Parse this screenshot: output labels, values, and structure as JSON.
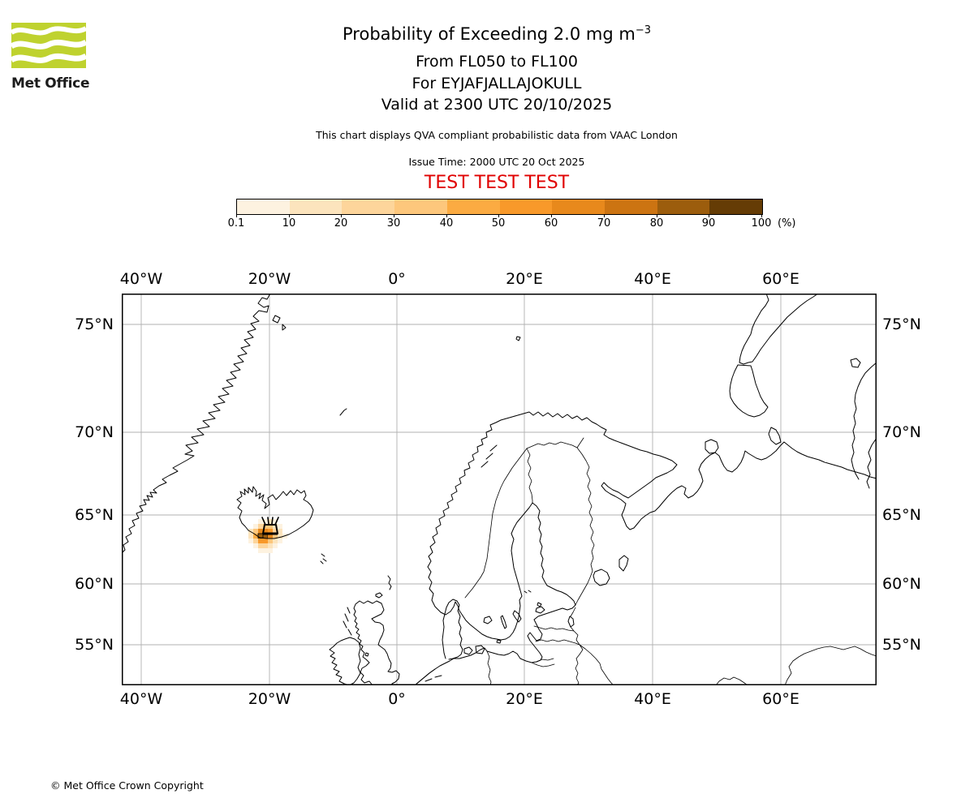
{
  "branding": {
    "logo_text": "Met Office",
    "logo_color": "#bfd22f"
  },
  "header": {
    "title_main": "Probability of Exceeding 2.0 mg m",
    "title_sup": "−3",
    "line_flight_levels": "From FL050 to FL100",
    "line_volcano": "For EYJAFJALLAJOKULL",
    "line_valid": "Valid at 2300 UTC 20/10/2025",
    "qva_note": "This chart displays QVA compliant probabilistic data from VAAC London",
    "issue_time": "Issue Time: 2000 UTC 20 Oct 2025",
    "test_banner": "TEST TEST TEST",
    "test_color": "#e00000"
  },
  "colorbar": {
    "unit_label": "(%)",
    "tick_labels": [
      "0.1",
      "10",
      "20",
      "30",
      "40",
      "50",
      "60",
      "70",
      "80",
      "90",
      "100"
    ],
    "segment_colors": [
      "#fdf2e0",
      "#fce4bd",
      "#fdd59b",
      "#fdc77c",
      "#fbab42",
      "#f8992a",
      "#e8891c",
      "#cc7412",
      "#9c5d0d",
      "#653c05"
    ]
  },
  "map": {
    "lon_labels": [
      "40°W",
      "20°W",
      "0°",
      "20°E",
      "40°E",
      "60°E"
    ],
    "lat_labels": [
      "75°N",
      "70°N",
      "65°N",
      "60°N",
      "55°N"
    ],
    "gridline_color": "#b0b0b0",
    "coastline_color": "#000000",
    "volcano_marker": "volcano-eruption-symbol"
  },
  "ash_plume": {
    "cell_size": 6,
    "cells": [
      [
        318,
        640,
        0
      ],
      [
        324,
        640,
        0
      ],
      [
        330,
        640,
        1
      ],
      [
        336,
        640,
        0
      ],
      [
        312,
        646,
        0
      ],
      [
        318,
        646,
        2
      ],
      [
        324,
        646,
        3
      ],
      [
        330,
        646,
        3
      ],
      [
        336,
        646,
        1
      ],
      [
        342,
        646,
        0
      ],
      [
        306,
        652,
        1
      ],
      [
        312,
        652,
        3
      ],
      [
        318,
        652,
        6
      ],
      [
        324,
        652,
        6
      ],
      [
        330,
        652,
        5
      ],
      [
        336,
        652,
        2
      ],
      [
        342,
        652,
        1
      ],
      [
        306,
        658,
        1
      ],
      [
        312,
        658,
        4
      ],
      [
        318,
        658,
        8
      ],
      [
        324,
        658,
        8
      ],
      [
        330,
        658,
        6
      ],
      [
        336,
        658,
        3
      ],
      [
        342,
        658,
        1
      ],
      [
        348,
        658,
        0
      ],
      [
        306,
        664,
        0
      ],
      [
        312,
        664,
        2
      ],
      [
        318,
        664,
        5
      ],
      [
        324,
        664,
        5
      ],
      [
        330,
        664,
        3
      ],
      [
        336,
        664,
        1
      ],
      [
        342,
        664,
        0
      ],
      [
        312,
        670,
        0
      ],
      [
        318,
        670,
        2
      ],
      [
        324,
        670,
        2
      ],
      [
        330,
        670,
        1
      ],
      [
        336,
        670,
        0
      ],
      [
        318,
        676,
        0
      ],
      [
        324,
        676,
        0
      ],
      [
        330,
        676,
        0
      ]
    ]
  },
  "footer": {
    "copyright_text": "© Met Office Crown Copyright"
  }
}
